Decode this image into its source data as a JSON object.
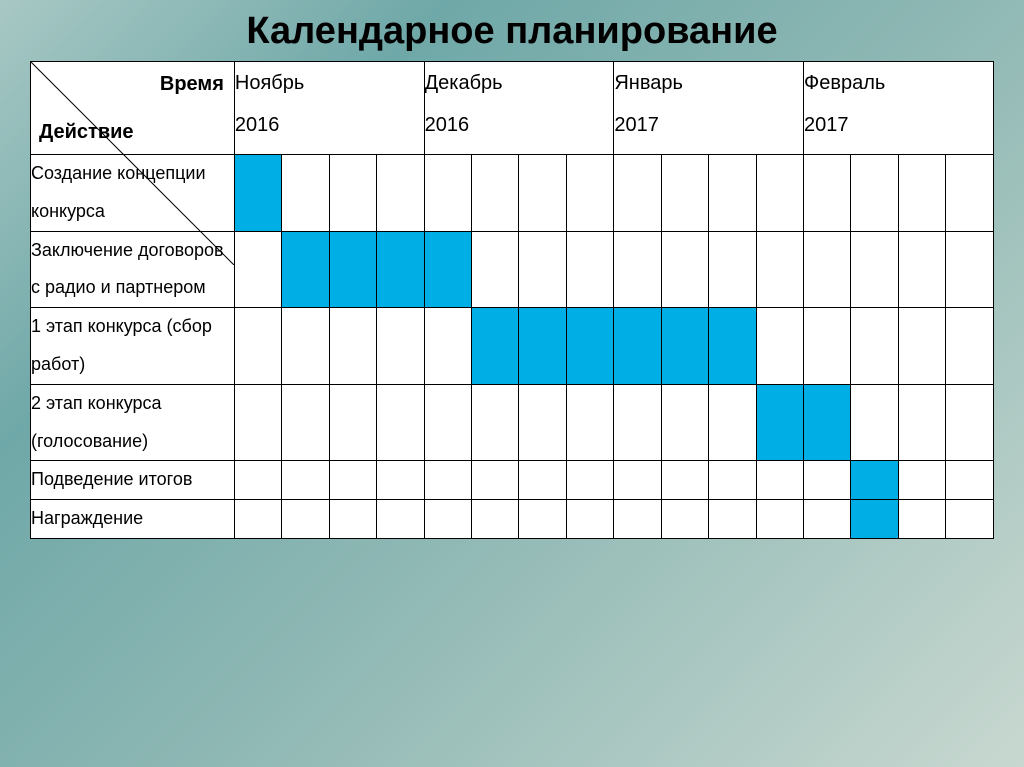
{
  "title": "Календарное планирование",
  "title_fontsize": 38,
  "header": {
    "corner_top": "Время",
    "corner_bottom": "Действие",
    "months": [
      {
        "name": "Ноябрь",
        "year": "2016",
        "weeks": 4
      },
      {
        "name": "Декабрь",
        "year": "2016",
        "weeks": 4
      },
      {
        "name": "Январь",
        "year": "2017",
        "weeks": 4
      },
      {
        "name": "Февраль",
        "year": "2017",
        "weeks": 4
      }
    ]
  },
  "total_weeks": 16,
  "fill_color": "#00aee6",
  "empty_color": "#ffffff",
  "border_color": "#000000",
  "background_gradient": [
    "#a8c8c4",
    "#6fa8a8",
    "#8fb8b4",
    "#c8d8d0"
  ],
  "label_fontsize": 18,
  "header_fontsize": 20,
  "rows": [
    {
      "label": "Создание концепции конкурса",
      "fill": [
        1,
        0,
        0,
        0,
        0,
        0,
        0,
        0,
        0,
        0,
        0,
        0,
        0,
        0,
        0,
        0
      ]
    },
    {
      "label": "Заключение договоров с радио и партнером",
      "fill": [
        0,
        1,
        1,
        1,
        1,
        0,
        0,
        0,
        0,
        0,
        0,
        0,
        0,
        0,
        0,
        0
      ]
    },
    {
      "label": "1 этап конкурса (сбор работ)",
      "fill": [
        0,
        0,
        0,
        0,
        0,
        1,
        1,
        1,
        1,
        1,
        1,
        0,
        0,
        0,
        0,
        0
      ]
    },
    {
      "label": "2 этап конкурса (голосование)",
      "fill": [
        0,
        0,
        0,
        0,
        0,
        0,
        0,
        0,
        0,
        0,
        0,
        1,
        1,
        0,
        0,
        0
      ]
    },
    {
      "label": "Подведение итогов",
      "fill": [
        0,
        0,
        0,
        0,
        0,
        0,
        0,
        0,
        0,
        0,
        0,
        0,
        0,
        1,
        0,
        0
      ]
    },
    {
      "label": "Награждение",
      "fill": [
        0,
        0,
        0,
        0,
        0,
        0,
        0,
        0,
        0,
        0,
        0,
        0,
        0,
        1,
        0,
        0
      ]
    }
  ]
}
